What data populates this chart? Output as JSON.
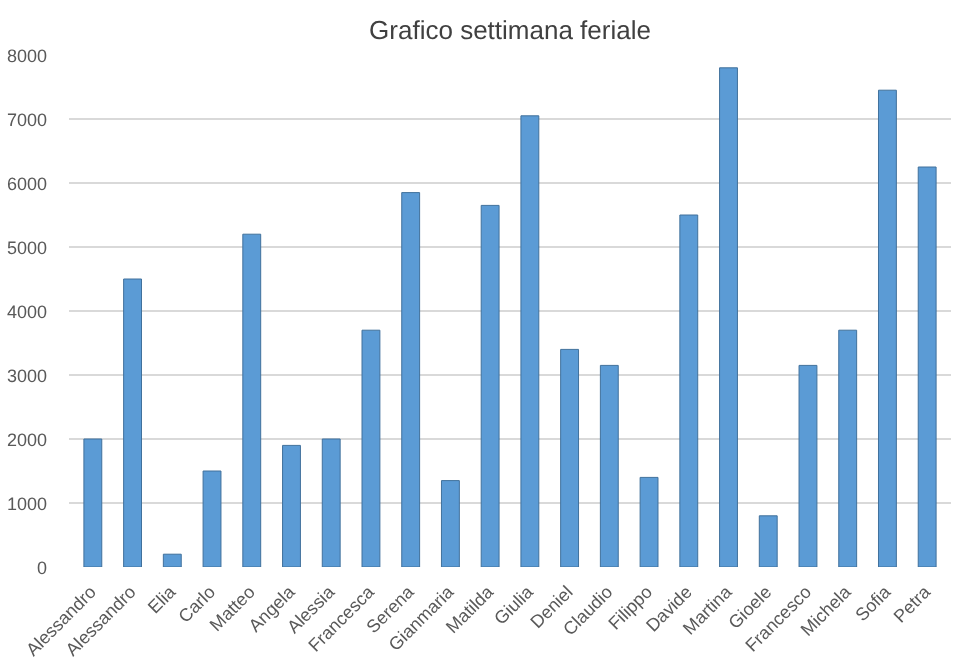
{
  "chart_data": {
    "type": "bar",
    "title": "Grafico settimana feriale",
    "categories": [
      "Alessandro",
      "Alessandro",
      "Elia",
      "Carlo",
      "Matteo",
      "Angela",
      "Alessia",
      "Francesca",
      "Serena",
      "Gianmaria",
      "Matilda",
      "Giulia",
      "Deniel",
      "Claudio",
      "Filippo",
      "Davide",
      "Martina",
      "Gioele",
      "Francesco",
      "Michela",
      "Sofia",
      "Petra"
    ],
    "values": [
      2000,
      4500,
      200,
      1500,
      5200,
      1900,
      2000,
      3700,
      5850,
      1350,
      5650,
      7050,
      3400,
      3150,
      1400,
      5500,
      7800,
      800,
      3150,
      3700,
      7450,
      6250
    ],
    "color": "#5b9bd5",
    "ylim": [
      0,
      8000
    ],
    "yticks": [
      0,
      1000,
      2000,
      3000,
      4000,
      5000,
      6000,
      7000,
      8000
    ],
    "grid": "y"
  }
}
